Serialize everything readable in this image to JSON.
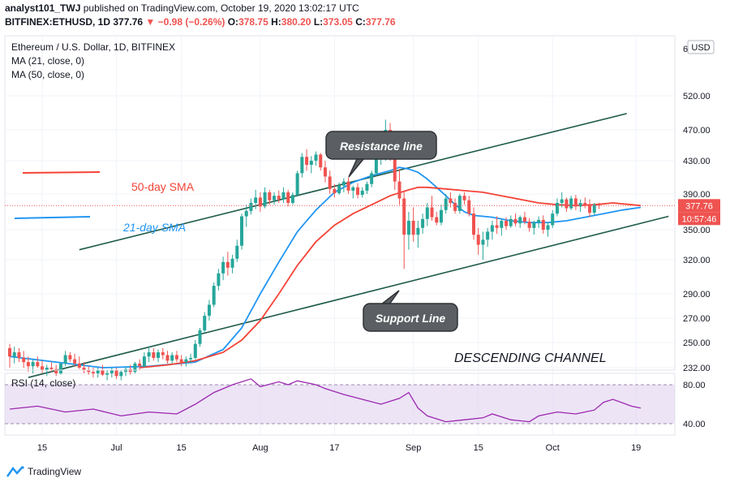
{
  "header": {
    "author": "analyst101_TWJ",
    "published": "published on TradingView.com, October 19, 2020 13:02:17 UTC",
    "symbol": "BITFINEX:ETHUSD, 1D",
    "last": "377.76",
    "change": "−0.98 (−0.26%)",
    "open_label": "O:",
    "open": "378.75",
    "high_label": "H:",
    "high": "380.20",
    "low_label": "L:",
    "low": "373.05",
    "close_label": "C:",
    "close": "377.76"
  },
  "legend": {
    "title": "Ethereum / U.S. Dollar, 1D, BITFINEX",
    "ma21": "MA (21, close, 0)",
    "ma50": "MA (50, close, 0)"
  },
  "annotations": {
    "sma50": "50-day SMA",
    "sma21": "21-day SMA",
    "resistance": "Resistance line",
    "support": "Support Line",
    "channel": "DESCENDING CHANNEL"
  },
  "badges": {
    "currency": "USD",
    "price": "377.76",
    "timer": "10:57:46"
  },
  "rsi": {
    "label": "RSI (14, close)",
    "levels": [
      "80.00",
      "40.00"
    ]
  },
  "footer": {
    "brand": "TradingView"
  },
  "colors": {
    "up": "#26a69a",
    "down": "#ef5350",
    "ma21": "#2196f3",
    "ma50": "#f44336",
    "trend": "#1e5a4a",
    "rsi_line": "#9c27b0",
    "rsi_band": "#e1d2f0"
  },
  "chart_data": {
    "type": "candlestick",
    "title": "Ethereum / U.S. Dollar, 1D, BITFINEX",
    "y_ticks": [
      232,
      250,
      270,
      290,
      320,
      350,
      390,
      430,
      470,
      520
    ],
    "x_ticks": [
      "15",
      "Jul",
      "15",
      "Aug",
      "17",
      "Sep",
      "15",
      "Oct",
      "19"
    ],
    "x_tick_index": [
      7,
      23,
      37,
      54,
      70,
      87,
      101,
      117,
      135
    ],
    "candles_ohlc": [
      [
        246,
        249,
        232,
        240
      ],
      [
        240,
        247,
        235,
        243
      ],
      [
        243,
        246,
        236,
        239
      ],
      [
        239,
        244,
        232,
        236
      ],
      [
        236,
        240,
        229,
        233
      ],
      [
        233,
        238,
        228,
        236
      ],
      [
        236,
        240,
        232,
        233
      ],
      [
        233,
        237,
        228,
        230
      ],
      [
        230,
        234,
        226,
        232
      ],
      [
        232,
        236,
        229,
        231
      ],
      [
        231,
        234,
        226,
        228
      ],
      [
        228,
        236,
        227,
        235
      ],
      [
        235,
        244,
        233,
        241
      ],
      [
        241,
        243,
        236,
        238
      ],
      [
        238,
        242,
        233,
        235
      ],
      [
        235,
        240,
        231,
        232
      ],
      [
        232,
        236,
        228,
        230
      ],
      [
        230,
        233,
        227,
        229
      ],
      [
        229,
        232,
        225,
        228
      ],
      [
        228,
        232,
        225,
        230
      ],
      [
        230,
        234,
        226,
        227
      ],
      [
        227,
        230,
        223,
        228
      ],
      [
        228,
        232,
        225,
        230
      ],
      [
        230,
        232,
        224,
        226
      ],
      [
        226,
        230,
        223,
        229
      ],
      [
        229,
        233,
        226,
        231
      ],
      [
        231,
        234,
        227,
        229
      ],
      [
        229,
        236,
        228,
        235
      ],
      [
        235,
        238,
        230,
        233
      ],
      [
        233,
        243,
        232,
        240
      ],
      [
        240,
        247,
        236,
        243
      ],
      [
        243,
        246,
        237,
        239
      ],
      [
        239,
        245,
        236,
        243
      ],
      [
        243,
        246,
        238,
        241
      ],
      [
        241,
        244,
        235,
        237
      ],
      [
        237,
        243,
        235,
        241
      ],
      [
        241,
        244,
        236,
        238
      ],
      [
        238,
        241,
        233,
        236
      ],
      [
        236,
        240,
        233,
        238
      ],
      [
        238,
        242,
        235,
        239
      ],
      [
        239,
        252,
        238,
        249
      ],
      [
        249,
        262,
        247,
        260
      ],
      [
        260,
        275,
        258,
        272
      ],
      [
        272,
        285,
        268,
        281
      ],
      [
        281,
        300,
        279,
        297
      ],
      [
        297,
        312,
        293,
        308
      ],
      [
        308,
        323,
        302,
        318
      ],
      [
        318,
        328,
        306,
        313
      ],
      [
        313,
        325,
        308,
        321
      ],
      [
        321,
        340,
        318,
        334
      ],
      [
        334,
        368,
        330,
        365
      ],
      [
        365,
        378,
        353,
        371
      ],
      [
        371,
        385,
        367,
        380
      ],
      [
        380,
        395,
        373,
        386
      ],
      [
        386,
        392,
        370,
        376
      ],
      [
        376,
        398,
        374,
        392
      ],
      [
        392,
        395,
        378,
        383
      ],
      [
        383,
        392,
        378,
        388
      ],
      [
        388,
        394,
        380,
        384
      ],
      [
        384,
        398,
        380,
        392
      ],
      [
        392,
        395,
        376,
        380
      ],
      [
        380,
        392,
        378,
        389
      ],
      [
        389,
        418,
        387,
        415
      ],
      [
        415,
        440,
        410,
        435
      ],
      [
        435,
        445,
        418,
        425
      ],
      [
        425,
        436,
        415,
        430
      ],
      [
        430,
        442,
        424,
        438
      ],
      [
        438,
        440,
        418,
        422
      ],
      [
        422,
        430,
        404,
        411
      ],
      [
        411,
        418,
        390,
        396
      ],
      [
        396,
        402,
        386,
        391
      ],
      [
        391,
        404,
        389,
        400
      ],
      [
        400,
        409,
        392,
        405
      ],
      [
        405,
        410,
        390,
        394
      ],
      [
        394,
        400,
        385,
        398
      ],
      [
        398,
        403,
        385,
        389
      ],
      [
        389,
        398,
        386,
        394
      ],
      [
        394,
        405,
        390,
        402
      ],
      [
        402,
        418,
        398,
        415
      ],
      [
        415,
        440,
        412,
        434
      ],
      [
        434,
        455,
        425,
        440
      ],
      [
        440,
        485,
        430,
        470
      ],
      [
        470,
        480,
        430,
        445
      ],
      [
        445,
        452,
        395,
        405
      ],
      [
        405,
        420,
        378,
        385
      ],
      [
        385,
        392,
        312,
        345
      ],
      [
        345,
        370,
        330,
        360
      ],
      [
        360,
        375,
        338,
        345
      ],
      [
        345,
        360,
        332,
        352
      ],
      [
        352,
        368,
        346,
        362
      ],
      [
        362,
        380,
        354,
        375
      ],
      [
        375,
        388,
        360,
        364
      ],
      [
        364,
        370,
        355,
        358
      ],
      [
        358,
        378,
        355,
        372
      ],
      [
        372,
        390,
        368,
        385
      ],
      [
        385,
        392,
        375,
        380
      ],
      [
        380,
        385,
        368,
        371
      ],
      [
        371,
        390,
        368,
        388
      ],
      [
        388,
        392,
        378,
        383
      ],
      [
        383,
        388,
        365,
        368
      ],
      [
        368,
        375,
        340,
        345
      ],
      [
        345,
        352,
        325,
        335
      ],
      [
        335,
        348,
        320,
        340
      ],
      [
        340,
        352,
        333,
        348
      ],
      [
        348,
        360,
        340,
        355
      ],
      [
        355,
        365,
        346,
        352
      ],
      [
        352,
        362,
        344,
        360
      ],
      [
        360,
        364,
        350,
        354
      ],
      [
        354,
        366,
        352,
        362
      ],
      [
        362,
        368,
        354,
        357
      ],
      [
        357,
        366,
        352,
        364
      ],
      [
        364,
        370,
        356,
        359
      ],
      [
        359,
        363,
        348,
        352
      ],
      [
        352,
        360,
        345,
        358
      ],
      [
        358,
        365,
        352,
        361
      ],
      [
        361,
        366,
        346,
        350
      ],
      [
        350,
        358,
        343,
        355
      ],
      [
        355,
        372,
        352,
        368
      ],
      [
        368,
        385,
        365,
        380
      ],
      [
        380,
        392,
        375,
        384
      ],
      [
        384,
        386,
        370,
        374
      ],
      [
        374,
        388,
        372,
        385
      ],
      [
        385,
        389,
        372,
        376
      ],
      [
        376,
        384,
        370,
        380
      ],
      [
        380,
        386,
        374,
        377
      ],
      [
        377,
        384,
        364,
        369
      ],
      [
        369,
        380,
        366,
        378
      ],
      [
        378,
        380,
        373,
        377
      ]
    ],
    "candles_note": "daily OHLC in USD, approx. Jun 8 2020 – Oct 19 2020",
    "ma21": [
      [
        0,
        240
      ],
      [
        10,
        236
      ],
      [
        20,
        232
      ],
      [
        30,
        233
      ],
      [
        40,
        236
      ],
      [
        46,
        245
      ],
      [
        50,
        262
      ],
      [
        54,
        290
      ],
      [
        58,
        318
      ],
      [
        62,
        348
      ],
      [
        66,
        372
      ],
      [
        70,
        392
      ],
      [
        74,
        404
      ],
      [
        78,
        412
      ],
      [
        82,
        418
      ],
      [
        84,
        422
      ],
      [
        86,
        420
      ],
      [
        88,
        416
      ],
      [
        90,
        408
      ],
      [
        92,
        398
      ],
      [
        94,
        388
      ],
      [
        96,
        378
      ],
      [
        98,
        370
      ],
      [
        100,
        366
      ],
      [
        104,
        364
      ],
      [
        108,
        360
      ],
      [
        112,
        358
      ],
      [
        116,
        358
      ],
      [
        120,
        360
      ],
      [
        124,
        364
      ],
      [
        128,
        368
      ],
      [
        132,
        372
      ],
      [
        136,
        375
      ]
    ],
    "ma50": [
      [
        28,
        232
      ],
      [
        34,
        234
      ],
      [
        40,
        237
      ],
      [
        46,
        243
      ],
      [
        50,
        252
      ],
      [
        54,
        268
      ],
      [
        58,
        290
      ],
      [
        62,
        315
      ],
      [
        66,
        338
      ],
      [
        70,
        355
      ],
      [
        74,
        368
      ],
      [
        78,
        378
      ],
      [
        82,
        388
      ],
      [
        86,
        395
      ],
      [
        88,
        398
      ],
      [
        90,
        398
      ],
      [
        94,
        396
      ],
      [
        98,
        394
      ],
      [
        102,
        392
      ],
      [
        106,
        388
      ],
      [
        110,
        384
      ],
      [
        114,
        380
      ],
      [
        118,
        378
      ],
      [
        122,
        377
      ],
      [
        126,
        378
      ],
      [
        130,
        380
      ],
      [
        134,
        378
      ],
      [
        136,
        377
      ]
    ],
    "resistance_line": [
      [
        15,
        330
      ],
      [
        133,
        494
      ]
    ],
    "support_line": [
      [
        4,
        225
      ],
      [
        142,
        365
      ]
    ],
    "rsi_values": [
      [
        0,
        55
      ],
      [
        6,
        58
      ],
      [
        12,
        52
      ],
      [
        18,
        55
      ],
      [
        24,
        48
      ],
      [
        30,
        52
      ],
      [
        36,
        50
      ],
      [
        40,
        60
      ],
      [
        44,
        72
      ],
      [
        48,
        80
      ],
      [
        52,
        86
      ],
      [
        54,
        78
      ],
      [
        58,
        83
      ],
      [
        60,
        80
      ],
      [
        62,
        84
      ],
      [
        66,
        80
      ],
      [
        68,
        76
      ],
      [
        72,
        70
      ],
      [
        76,
        65
      ],
      [
        80,
        60
      ],
      [
        84,
        66
      ],
      [
        86,
        72
      ],
      [
        88,
        56
      ],
      [
        90,
        48
      ],
      [
        94,
        42
      ],
      [
        98,
        44
      ],
      [
        102,
        46
      ],
      [
        104,
        50
      ],
      [
        108,
        44
      ],
      [
        112,
        42
      ],
      [
        114,
        48
      ],
      [
        118,
        52
      ],
      [
        122,
        50
      ],
      [
        126,
        54
      ],
      [
        128,
        62
      ],
      [
        130,
        65
      ],
      [
        134,
        58
      ],
      [
        136,
        56
      ]
    ],
    "rsi_ylim": [
      30,
      90
    ]
  }
}
